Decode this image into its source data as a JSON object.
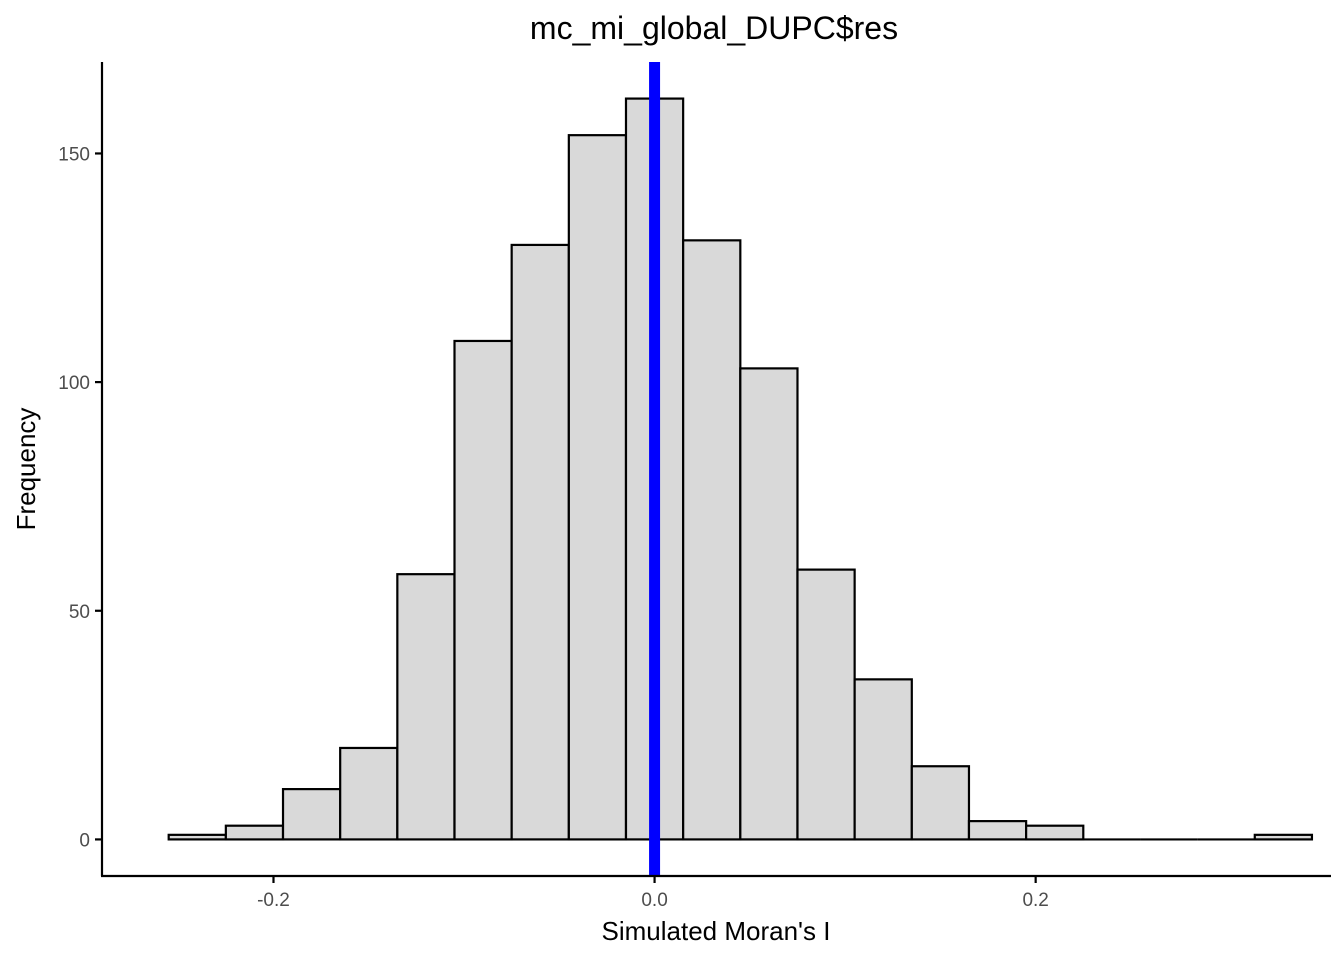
{
  "chart_data": {
    "type": "bar",
    "title": "mc_mi_global_DUPC$res",
    "xlabel": "Simulated Moran's I",
    "ylabel": "Frequency",
    "xlim": [
      -0.29,
      0.355
    ],
    "ylim": [
      -8,
      170
    ],
    "x_ticks": [
      {
        "value": -0.2,
        "label": "-0.2"
      },
      {
        "value": 0.0,
        "label": "0.0"
      },
      {
        "value": 0.2,
        "label": "0.2"
      }
    ],
    "y_ticks": [
      {
        "value": 0,
        "label": "0"
      },
      {
        "value": 50,
        "label": "50"
      },
      {
        "value": 100,
        "label": "100"
      },
      {
        "value": 150,
        "label": "150"
      }
    ],
    "bin_width": 0.03,
    "bins": [
      {
        "start": -0.255,
        "end": -0.225,
        "count": 1
      },
      {
        "start": -0.225,
        "end": -0.195,
        "count": 3
      },
      {
        "start": -0.195,
        "end": -0.165,
        "count": 11
      },
      {
        "start": -0.165,
        "end": -0.135,
        "count": 20
      },
      {
        "start": -0.135,
        "end": -0.105,
        "count": 58
      },
      {
        "start": -0.105,
        "end": -0.075,
        "count": 109
      },
      {
        "start": -0.075,
        "end": -0.045,
        "count": 130
      },
      {
        "start": -0.045,
        "end": -0.015,
        "count": 154
      },
      {
        "start": -0.015,
        "end": 0.015,
        "count": 162
      },
      {
        "start": 0.015,
        "end": 0.045,
        "count": 131
      },
      {
        "start": 0.045,
        "end": 0.075,
        "count": 103
      },
      {
        "start": 0.075,
        "end": 0.105,
        "count": 59
      },
      {
        "start": 0.105,
        "end": 0.135,
        "count": 35
      },
      {
        "start": 0.135,
        "end": 0.165,
        "count": 16
      },
      {
        "start": 0.165,
        "end": 0.195,
        "count": 4
      },
      {
        "start": 0.195,
        "end": 0.225,
        "count": 3
      },
      {
        "start": 0.225,
        "end": 0.255,
        "count": 0
      },
      {
        "start": 0.255,
        "end": 0.285,
        "count": 0
      },
      {
        "start": 0.285,
        "end": 0.315,
        "count": 0
      },
      {
        "start": 0.315,
        "end": 0.345,
        "count": 1
      }
    ],
    "reference_line": {
      "x": 0.0,
      "color": "#0000ff"
    },
    "bar_fill": "#d9d9d9",
    "bar_stroke": "#000000",
    "grid": false
  }
}
